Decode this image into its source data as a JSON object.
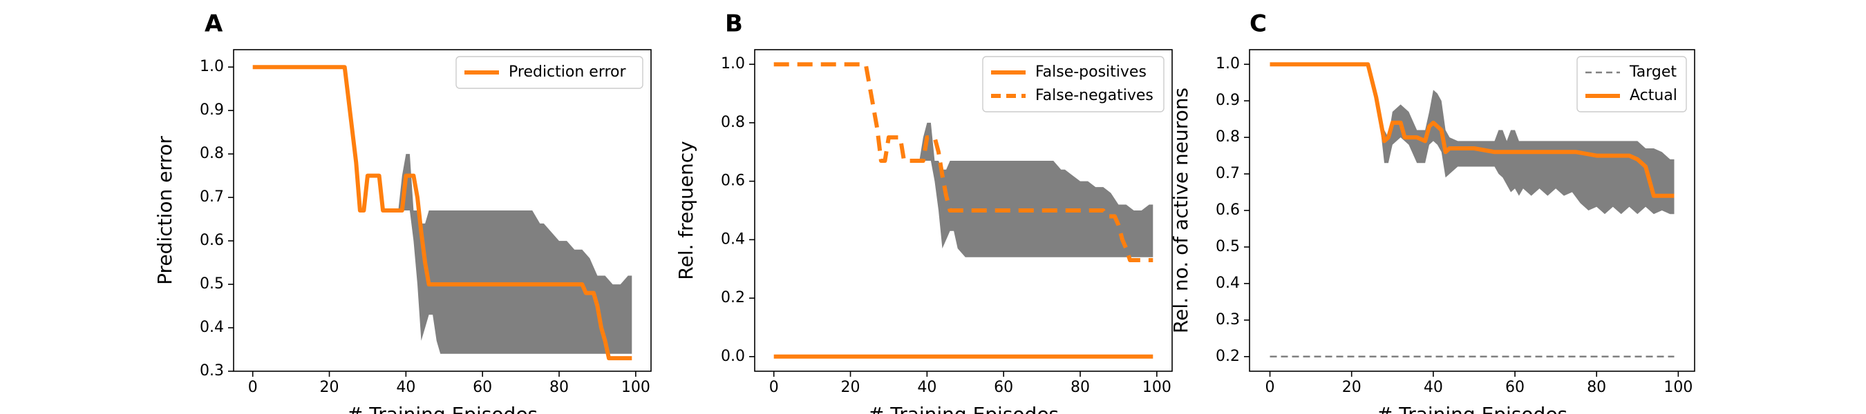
{
  "figure": {
    "panels": [
      {
        "label": "A"
      },
      {
        "label": "B"
      },
      {
        "label": "C"
      }
    ]
  },
  "chart_data": [
    {
      "type": "line",
      "panel": "A",
      "title": "",
      "xlabel": "# Training Episodes",
      "ylabel": "Prediction error",
      "xlim": [
        -5,
        104
      ],
      "ylim": [
        0.3,
        1.04
      ],
      "xticks": [
        0,
        20,
        40,
        60,
        80,
        100
      ],
      "yticks": [
        0.3,
        0.4,
        0.5,
        0.6,
        0.7,
        0.8,
        0.9,
        1.0
      ],
      "ytick_labels": [
        "0.3",
        "0.4",
        "0.5",
        "0.6",
        "0.7",
        "0.8",
        "0.9",
        "1.0"
      ],
      "legend": {
        "position": "top-right",
        "entries": [
          "Prediction error"
        ]
      },
      "band": {
        "color": "#808080",
        "x": [
          0,
          24,
          26,
          28,
          29,
          30,
          32,
          34,
          36,
          38,
          39,
          40,
          41,
          42,
          43,
          44,
          45,
          46,
          47,
          48,
          49,
          50,
          55,
          60,
          65,
          70,
          73,
          75,
          76,
          78,
          80,
          82,
          84,
          86,
          88,
          90,
          92,
          94,
          96,
          98,
          99
        ],
        "upper": [
          1.0,
          1.0,
          0.83,
          0.67,
          0.67,
          0.75,
          0.75,
          0.67,
          0.67,
          0.67,
          0.75,
          0.8,
          0.8,
          0.67,
          0.67,
          0.64,
          0.64,
          0.67,
          0.67,
          0.67,
          0.67,
          0.67,
          0.67,
          0.67,
          0.67,
          0.67,
          0.67,
          0.64,
          0.64,
          0.62,
          0.6,
          0.6,
          0.58,
          0.58,
          0.56,
          0.52,
          0.52,
          0.5,
          0.5,
          0.52,
          0.52
        ],
        "lower": [
          1.0,
          1.0,
          0.83,
          0.67,
          0.67,
          0.75,
          0.75,
          0.67,
          0.67,
          0.67,
          0.67,
          0.67,
          0.67,
          0.6,
          0.5,
          0.37,
          0.4,
          0.43,
          0.43,
          0.37,
          0.34,
          0.34,
          0.34,
          0.34,
          0.34,
          0.34,
          0.34,
          0.34,
          0.34,
          0.34,
          0.34,
          0.34,
          0.34,
          0.34,
          0.34,
          0.34,
          0.34,
          0.34,
          0.34,
          0.34,
          0.34
        ]
      },
      "series": [
        {
          "name": "Prediction error",
          "color": "#ff7f0e",
          "dash": "solid",
          "x": [
            0,
            24,
            27,
            28,
            29,
            30,
            32,
            33,
            34,
            36,
            38,
            39,
            40,
            41,
            42,
            43,
            44,
            45,
            46,
            47,
            50,
            60,
            70,
            80,
            86,
            87,
            88,
            89,
            90,
            91,
            92,
            93,
            94,
            96,
            98,
            99
          ],
          "y": [
            1.0,
            1.0,
            0.78,
            0.67,
            0.67,
            0.75,
            0.75,
            0.75,
            0.67,
            0.67,
            0.67,
            0.67,
            0.75,
            0.75,
            0.75,
            0.7,
            0.62,
            0.55,
            0.5,
            0.5,
            0.5,
            0.5,
            0.5,
            0.5,
            0.5,
            0.48,
            0.48,
            0.48,
            0.45,
            0.4,
            0.37,
            0.33,
            0.33,
            0.33,
            0.33,
            0.33
          ]
        }
      ]
    },
    {
      "type": "line",
      "panel": "B",
      "title": "",
      "xlabel": "# Training Episodes",
      "ylabel": "Rel. frequency",
      "xlim": [
        -5,
        104
      ],
      "ylim": [
        -0.05,
        1.05
      ],
      "xticks": [
        0,
        20,
        40,
        60,
        80,
        100
      ],
      "yticks": [
        0.0,
        0.2,
        0.4,
        0.6,
        0.8,
        1.0
      ],
      "ytick_labels": [
        "0.0",
        "0.2",
        "0.4",
        "0.6",
        "0.8",
        "1.0"
      ],
      "legend": {
        "position": "top-right",
        "entries": [
          "False-positives",
          "False-negatives"
        ]
      },
      "band": {
        "color": "#808080",
        "x": [
          0,
          24,
          26,
          28,
          29,
          30,
          32,
          34,
          36,
          38,
          39,
          40,
          41,
          42,
          43,
          44,
          45,
          46,
          47,
          48,
          50,
          55,
          60,
          65,
          70,
          73,
          75,
          76,
          78,
          80,
          82,
          84,
          86,
          88,
          90,
          92,
          94,
          96,
          98,
          99
        ],
        "upper": [
          1.0,
          1.0,
          0.83,
          0.67,
          0.67,
          0.75,
          0.75,
          0.67,
          0.67,
          0.67,
          0.75,
          0.8,
          0.8,
          0.67,
          0.67,
          0.64,
          0.64,
          0.67,
          0.67,
          0.67,
          0.67,
          0.67,
          0.67,
          0.67,
          0.67,
          0.67,
          0.64,
          0.64,
          0.62,
          0.6,
          0.6,
          0.58,
          0.58,
          0.56,
          0.52,
          0.52,
          0.5,
          0.5,
          0.52,
          0.52
        ],
        "lower": [
          1.0,
          1.0,
          0.83,
          0.67,
          0.67,
          0.75,
          0.75,
          0.67,
          0.67,
          0.67,
          0.67,
          0.67,
          0.67,
          0.6,
          0.5,
          0.37,
          0.4,
          0.43,
          0.43,
          0.37,
          0.34,
          0.34,
          0.34,
          0.34,
          0.34,
          0.34,
          0.34,
          0.34,
          0.34,
          0.34,
          0.34,
          0.34,
          0.34,
          0.34,
          0.34,
          0.34,
          0.34,
          0.34,
          0.34,
          0.34
        ]
      },
      "series": [
        {
          "name": "False-positives",
          "color": "#ff7f0e",
          "dash": "solid",
          "x": [
            0,
            99
          ],
          "y": [
            0.0,
            0.0
          ]
        },
        {
          "name": "False-negatives",
          "color": "#ff7f0e",
          "dash": "dashed",
          "x": [
            0,
            24,
            27,
            28,
            29,
            30,
            32,
            33,
            34,
            36,
            38,
            39,
            40,
            41,
            42,
            43,
            44,
            45,
            46,
            47,
            50,
            60,
            70,
            80,
            86,
            87,
            88,
            89,
            90,
            91,
            92,
            93,
            94,
            96,
            98,
            99
          ],
          "y": [
            1.0,
            1.0,
            0.78,
            0.67,
            0.67,
            0.75,
            0.75,
            0.75,
            0.67,
            0.67,
            0.67,
            0.67,
            0.75,
            0.75,
            0.75,
            0.7,
            0.62,
            0.55,
            0.5,
            0.5,
            0.5,
            0.5,
            0.5,
            0.5,
            0.5,
            0.48,
            0.48,
            0.48,
            0.45,
            0.4,
            0.37,
            0.33,
            0.33,
            0.33,
            0.33,
            0.33
          ]
        }
      ]
    },
    {
      "type": "line",
      "panel": "C",
      "title": "",
      "xlabel": "# Training Episodes",
      "ylabel": "Rel. no. of active neurons",
      "xlim": [
        -5,
        104
      ],
      "ylim": [
        0.16,
        1.04
      ],
      "xticks": [
        0,
        20,
        40,
        60,
        80,
        100
      ],
      "yticks": [
        0.2,
        0.3,
        0.4,
        0.5,
        0.6,
        0.7,
        0.8,
        0.9,
        1.0
      ],
      "ytick_labels": [
        "0.2",
        "0.3",
        "0.4",
        "0.5",
        "0.6",
        "0.7",
        "0.8",
        "0.9",
        "1.0"
      ],
      "legend": {
        "position": "top-right",
        "entries": [
          "Target",
          "Actual"
        ]
      },
      "band": {
        "color": "#808080",
        "x": [
          0,
          24,
          26,
          28,
          29,
          30,
          32,
          34,
          36,
          38,
          39,
          40,
          41,
          42,
          43,
          44,
          46,
          50,
          55,
          56,
          57,
          58,
          59,
          60,
          61,
          62,
          64,
          66,
          68,
          70,
          72,
          74,
          76,
          78,
          80,
          82,
          84,
          86,
          88,
          90,
          92,
          94,
          96,
          98,
          99
        ],
        "upper": [
          1.0,
          1.0,
          0.93,
          0.82,
          0.8,
          0.87,
          0.89,
          0.87,
          0.82,
          0.82,
          0.87,
          0.93,
          0.92,
          0.9,
          0.82,
          0.8,
          0.79,
          0.79,
          0.79,
          0.82,
          0.82,
          0.79,
          0.82,
          0.82,
          0.79,
          0.79,
          0.79,
          0.79,
          0.79,
          0.79,
          0.79,
          0.79,
          0.79,
          0.79,
          0.79,
          0.79,
          0.79,
          0.79,
          0.79,
          0.79,
          0.77,
          0.77,
          0.76,
          0.74,
          0.74
        ],
        "lower": [
          1.0,
          1.0,
          0.93,
          0.73,
          0.73,
          0.78,
          0.8,
          0.78,
          0.73,
          0.73,
          0.78,
          0.79,
          0.78,
          0.76,
          0.69,
          0.7,
          0.72,
          0.72,
          0.72,
          0.7,
          0.69,
          0.67,
          0.65,
          0.66,
          0.64,
          0.66,
          0.64,
          0.66,
          0.64,
          0.66,
          0.64,
          0.65,
          0.62,
          0.6,
          0.61,
          0.59,
          0.61,
          0.59,
          0.61,
          0.59,
          0.61,
          0.59,
          0.6,
          0.59,
          0.59
        ]
      },
      "series": [
        {
          "name": "Target",
          "color": "#808080",
          "dash": "dashed",
          "x": [
            0,
            99
          ],
          "y": [
            0.2,
            0.2
          ]
        },
        {
          "name": "Actual",
          "color": "#ff7f0e",
          "dash": "solid",
          "x": [
            0,
            24,
            26,
            28,
            29,
            30,
            32,
            33,
            34,
            36,
            38,
            39,
            40,
            41,
            42,
            43,
            44,
            46,
            50,
            55,
            60,
            65,
            70,
            75,
            80,
            85,
            88,
            90,
            92,
            94,
            96,
            98,
            99
          ],
          "y": [
            1.0,
            1.0,
            0.91,
            0.79,
            0.8,
            0.84,
            0.84,
            0.8,
            0.8,
            0.8,
            0.79,
            0.83,
            0.84,
            0.83,
            0.82,
            0.76,
            0.77,
            0.77,
            0.77,
            0.76,
            0.76,
            0.76,
            0.76,
            0.76,
            0.75,
            0.75,
            0.75,
            0.74,
            0.72,
            0.64,
            0.64,
            0.64,
            0.64
          ]
        }
      ]
    }
  ]
}
